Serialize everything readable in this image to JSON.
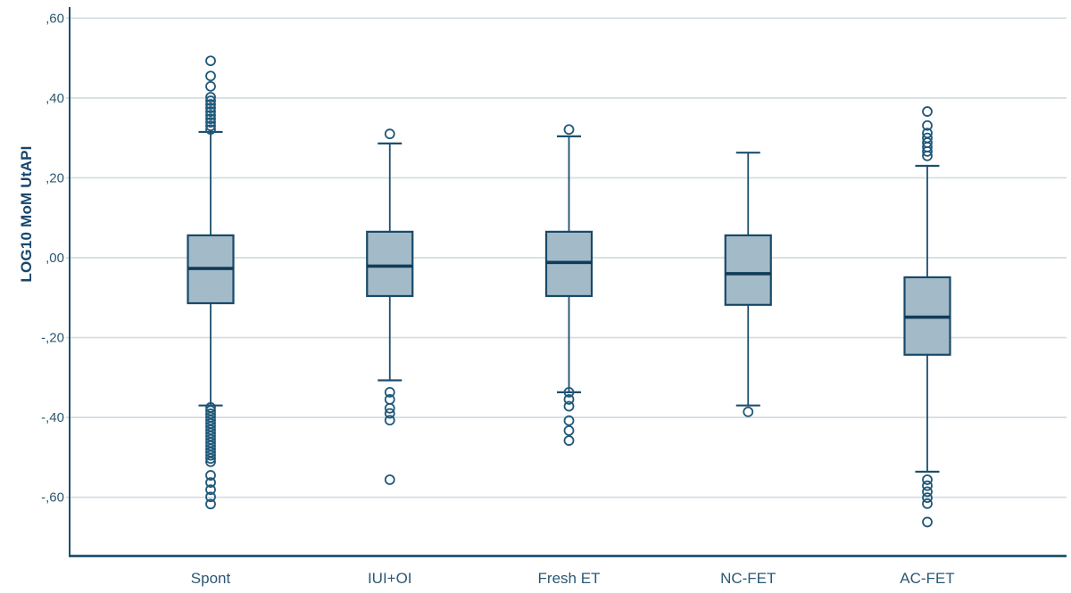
{
  "chart_data": {
    "type": "boxplot",
    "title": "",
    "xlabel": "",
    "ylabel": "LOG10 MoM UtAPI",
    "ylim": [
      -0.747,
      0.623
    ],
    "yticks": [
      0.6,
      0.4,
      0.2,
      0.0,
      -0.2,
      -0.4,
      -0.6
    ],
    "ytick_labels": [
      ",60",
      ",40",
      ",20",
      ",00",
      "-,20",
      "-,40",
      "-,60"
    ],
    "grid": true,
    "legend": false,
    "categories": [
      "Spont",
      "IUI+OI",
      "Fresh ET",
      "NC-FET",
      "AC-FET"
    ],
    "series": [
      {
        "name": "Spont",
        "q1": -0.114,
        "median": -0.027,
        "q3": 0.056,
        "whisker_low": -0.37,
        "whisker_high": 0.315,
        "outliers_high": [
          0.493,
          0.455,
          0.429,
          0.402,
          0.393,
          0.384,
          0.375,
          0.366,
          0.357,
          0.348,
          0.339,
          0.33,
          0.321
        ],
        "outliers_low": [
          -0.375,
          -0.383,
          -0.391,
          -0.399,
          -0.407,
          -0.415,
          -0.423,
          -0.431,
          -0.439,
          -0.447,
          -0.455,
          -0.463,
          -0.471,
          -0.479,
          -0.487,
          -0.495,
          -0.503,
          -0.511,
          -0.545,
          -0.563,
          -0.581,
          -0.599,
          -0.617
        ]
      },
      {
        "name": "IUI+OI",
        "q1": -0.096,
        "median": -0.021,
        "q3": 0.065,
        "whisker_low": -0.307,
        "whisker_high": 0.286,
        "outliers_high": [
          0.31
        ],
        "outliers_low": [
          -0.337,
          -0.355,
          -0.377,
          -0.39,
          -0.407,
          -0.556
        ]
      },
      {
        "name": "Fresh ET",
        "q1": -0.096,
        "median": -0.012,
        "q3": 0.065,
        "whisker_low": -0.337,
        "whisker_high": 0.304,
        "outliers_high": [
          0.321
        ],
        "outliers_low": [
          -0.337,
          -0.355,
          -0.372,
          -0.408,
          -0.433,
          -0.458
        ]
      },
      {
        "name": "NC-FET",
        "q1": -0.118,
        "median": -0.04,
        "q3": 0.056,
        "whisker_low": -0.37,
        "whisker_high": 0.263,
        "outliers_high": [],
        "outliers_low": [
          -0.386
        ]
      },
      {
        "name": "AC-FET",
        "q1": -0.243,
        "median": -0.149,
        "q3": -0.049,
        "whisker_low": -0.536,
        "whisker_high": 0.23,
        "outliers_high": [
          0.366,
          0.331,
          0.312,
          0.3,
          0.288,
          0.277,
          0.266,
          0.255
        ],
        "outliers_low": [
          -0.556,
          -0.571,
          -0.586,
          -0.601,
          -0.616,
          -0.662
        ]
      }
    ],
    "colors": {
      "box_fill": "#a3bac8",
      "box_stroke": "#174a69",
      "median": "#103c59",
      "whisker": "#1d4f6e",
      "outlier": "#1f587a",
      "axis": "#1d4f6e",
      "grid": "#d2dce1",
      "text": "#2b5874"
    }
  }
}
